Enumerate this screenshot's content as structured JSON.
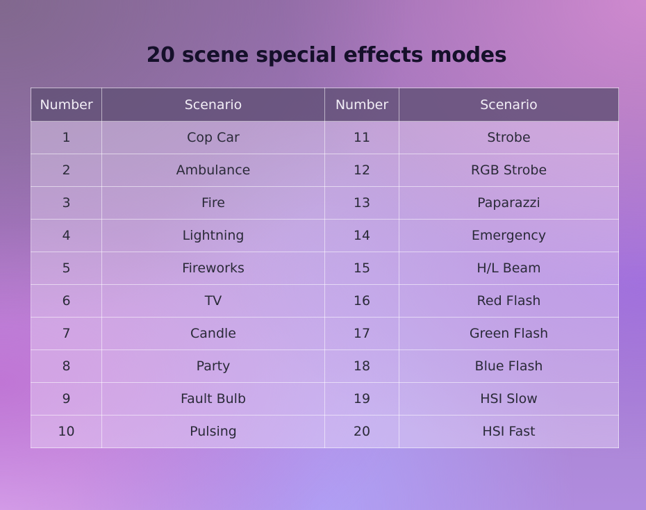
{
  "title": "20 scene special effects modes",
  "table": {
    "headers": [
      "Number",
      "Scenario",
      "Number",
      "Scenario"
    ],
    "rows": [
      [
        "1",
        "Cop Car",
        "11",
        "Strobe"
      ],
      [
        "2",
        "Ambulance",
        "12",
        "RGB Strobe"
      ],
      [
        "3",
        "Fire",
        "13",
        "Paparazzi"
      ],
      [
        "4",
        "Lightning",
        "14",
        "Emergency"
      ],
      [
        "5",
        "Fireworks",
        "15",
        "H/L Beam"
      ],
      [
        "6",
        "TV",
        "16",
        "Red Flash"
      ],
      [
        "7",
        "Candle",
        "17",
        "Green Flash"
      ],
      [
        "8",
        "Party",
        "18",
        "Blue Flash"
      ],
      [
        "9",
        "Fault Bulb",
        "19",
        "HSI Slow"
      ],
      [
        "10",
        "Pulsing",
        "20",
        "HSI Fast"
      ]
    ]
  }
}
